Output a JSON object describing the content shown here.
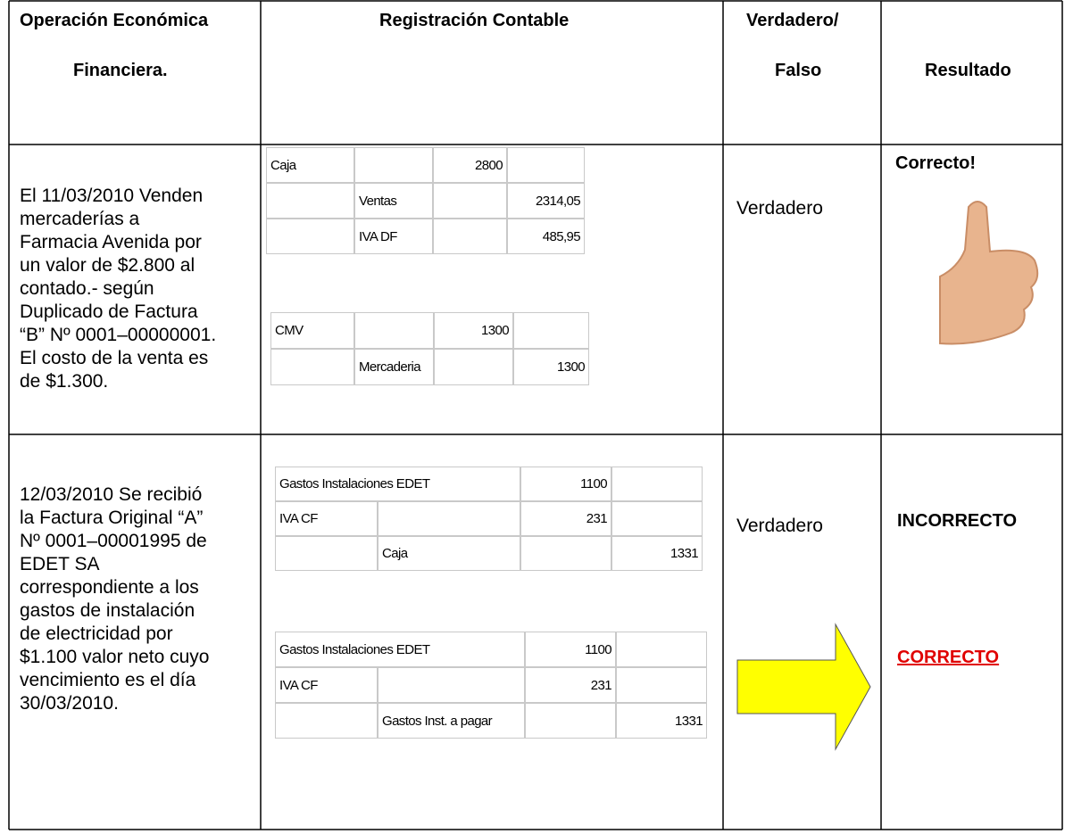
{
  "header": {
    "operation": [
      "Operación Económica",
      "Financiera."
    ],
    "registration": "Registración Contable",
    "verdict": [
      "Verdadero/",
      "Falso"
    ],
    "result": "Resultado"
  },
  "rows": [
    {
      "description": [
        "El 11/03/2010 Venden",
        "mercaderías a",
        "Farmacia Avenida por",
        "un valor de $2.800 al",
        "contado.- según",
        "Duplicado de Factura",
        "“B” Nº 0001–00000001.",
        "El costo de la venta es",
        "de $1.300."
      ],
      "entries": [
        [
          [
            "Caja",
            null,
            "2800",
            null
          ],
          [
            null,
            "Ventas",
            null,
            "2314,05"
          ],
          [
            null,
            "IVA DF",
            null,
            "485,95"
          ]
        ],
        [
          [
            "CMV",
            null,
            "1300",
            null
          ],
          [
            null,
            "Mercaderia",
            null,
            "1300"
          ]
        ]
      ],
      "verdict": "Verdadero",
      "result": [
        "Correcto!"
      ]
    },
    {
      "description": [
        "12/03/2010 Se recibió",
        "la Factura Original “A”",
        "Nº 0001–00001995 de",
        "EDET SA",
        "correspondiente a los",
        "gastos de instalación",
        "de electricidad por",
        "$1.100 valor neto cuyo",
        "vencimiento es el día",
        "30/03/2010."
      ],
      "entries": [
        [
          [
            "Gastos Instalaciones EDET",
            "1100",
            null
          ],
          [
            "IVA CF",
            null,
            "231",
            null
          ],
          [
            null,
            "Caja",
            null,
            "1331"
          ]
        ],
        [
          [
            "Gastos Instalaciones EDET",
            "1100",
            null
          ],
          [
            "IVA CF",
            null,
            "231",
            null
          ],
          [
            null,
            "Gastos Inst. a pagar",
            null,
            "1331"
          ]
        ]
      ],
      "verdict": "Verdadero",
      "result": [
        "INCORRECTO",
        "CORRECTO"
      ]
    }
  ]
}
